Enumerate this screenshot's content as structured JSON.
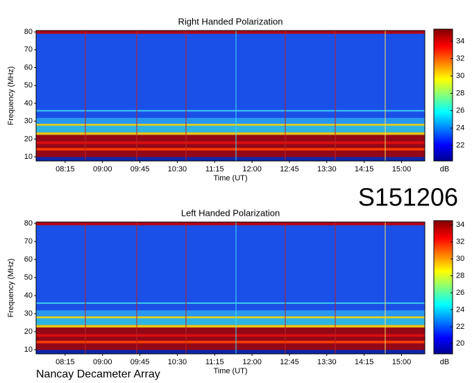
{
  "page_title": "S151206",
  "footer": "Nancay Decameter Array",
  "chart_data": [
    {
      "type": "heatmap",
      "title": "Right Handed Polarization",
      "xlabel": "Time (UT)",
      "ylabel": "Frequency (MHz)",
      "xlim": [
        460,
        928
      ],
      "xticks": [
        {
          "value": 495,
          "label": "08:15"
        },
        {
          "value": 540,
          "label": "09:00"
        },
        {
          "value": 585,
          "label": "09:45"
        },
        {
          "value": 630,
          "label": "10:30"
        },
        {
          "value": 675,
          "label": "11:15"
        },
        {
          "value": 720,
          "label": "12:00"
        },
        {
          "value": 765,
          "label": "12:45"
        },
        {
          "value": 810,
          "label": "13:30"
        },
        {
          "value": 855,
          "label": "14:15"
        },
        {
          "value": 900,
          "label": "15:00"
        }
      ],
      "ylim": [
        7.7,
        80.8
      ],
      "yticks": [
        10,
        20,
        30,
        40,
        50,
        60,
        70,
        80
      ],
      "colorbar_label": "dB",
      "clim": [
        20.2,
        35.4
      ],
      "cticks": [
        22,
        24,
        26,
        28,
        30,
        32,
        34
      ]
    },
    {
      "type": "heatmap",
      "title": "Left Handed Polarization",
      "xlabel": "Time (UT)",
      "ylabel": "Frequency (MHz)",
      "xlim": [
        460,
        928
      ],
      "xticks": [
        {
          "value": 495,
          "label": "08:15"
        },
        {
          "value": 540,
          "label": "09:00"
        },
        {
          "value": 585,
          "label": "09:45"
        },
        {
          "value": 630,
          "label": "10:30"
        },
        {
          "value": 675,
          "label": "11:15"
        },
        {
          "value": 720,
          "label": "12:00"
        },
        {
          "value": 765,
          "label": "12:45"
        },
        {
          "value": 810,
          "label": "13:30"
        },
        {
          "value": 855,
          "label": "14:15"
        },
        {
          "value": 900,
          "label": "15:00"
        }
      ],
      "ylim": [
        7.7,
        80.8
      ],
      "yticks": [
        10,
        20,
        30,
        40,
        50,
        60,
        70,
        80
      ],
      "colorbar_label": "dB",
      "clim": [
        18.8,
        34.5
      ],
      "cticks": [
        20,
        22,
        24,
        26,
        28,
        30,
        32,
        34
      ]
    }
  ]
}
